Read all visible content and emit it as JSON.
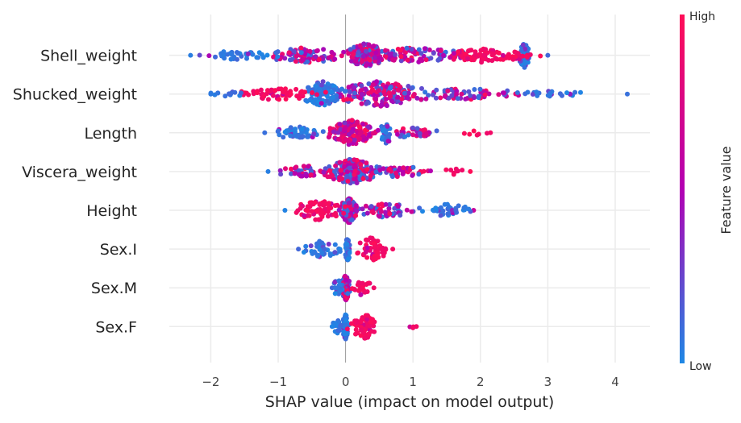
{
  "chart_data": {
    "type": "scatter",
    "subtype": "shap-beeswarm",
    "title": "",
    "xlabel": "SHAP value (impact on model output)",
    "ylabel": "",
    "xlim": [
      -2.6,
      4.5
    ],
    "xticks": [
      -2,
      -1,
      0,
      1,
      2,
      3,
      4
    ],
    "xtick_labels": [
      "−2",
      "−1",
      "0",
      "1",
      "2",
      "3",
      "4"
    ],
    "grid": true,
    "colorbar": {
      "title": "Feature value",
      "high_label": "High",
      "low_label": "Low",
      "high_color": "#ff0d57",
      "mid_color": "#b300b3",
      "low_color": "#1e88e5"
    },
    "features": [
      {
        "name": "Shell_weight",
        "min": -2.3,
        "max": 3.0,
        "clusters": [
          {
            "x": 0.3,
            "w": 0.28,
            "n": 150,
            "c": "mix"
          },
          {
            "x": 1.0,
            "w": 0.8,
            "n": 90,
            "c": "mix"
          },
          {
            "x": 2.0,
            "w": 0.5,
            "n": 60,
            "c": "high"
          },
          {
            "x": 2.65,
            "w": 0.07,
            "n": 40,
            "c": "low"
          },
          {
            "x": 2.5,
            "w": 0.35,
            "n": 25,
            "c": "high"
          },
          {
            "x": -0.6,
            "w": 0.6,
            "n": 80,
            "c": "mix"
          },
          {
            "x": -1.6,
            "w": 0.6,
            "n": 40,
            "c": "low"
          }
        ]
      },
      {
        "name": "Shucked_weight",
        "min": -2.0,
        "max": 4.18,
        "clusters": [
          {
            "x": 0.5,
            "w": 0.7,
            "n": 170,
            "c": "mix"
          },
          {
            "x": -0.35,
            "w": 0.3,
            "n": 90,
            "c": "low"
          },
          {
            "x": -1.0,
            "w": 0.6,
            "n": 60,
            "c": "high"
          },
          {
            "x": 1.8,
            "w": 1.0,
            "n": 70,
            "c": "mix"
          },
          {
            "x": 3.0,
            "w": 0.6,
            "n": 20,
            "c": "low"
          },
          {
            "x": -1.7,
            "w": 0.3,
            "n": 12,
            "c": "low"
          }
        ]
      },
      {
        "name": "Length",
        "min": -1.2,
        "max": 2.15,
        "clusters": [
          {
            "x": 0.1,
            "w": 0.35,
            "n": 150,
            "c": "mixhigh"
          },
          {
            "x": 0.6,
            "w": 0.1,
            "n": 35,
            "c": "low"
          },
          {
            "x": -0.7,
            "w": 0.4,
            "n": 45,
            "c": "low"
          },
          {
            "x": 1.0,
            "w": 0.4,
            "n": 35,
            "c": "mix"
          },
          {
            "x": 1.9,
            "w": 0.2,
            "n": 6,
            "c": "high"
          }
        ]
      },
      {
        "name": "Viscera_weight",
        "min": -1.15,
        "max": 1.85,
        "clusters": [
          {
            "x": 0.1,
            "w": 0.4,
            "n": 160,
            "c": "mix"
          },
          {
            "x": -0.6,
            "w": 0.4,
            "n": 45,
            "c": "mix"
          },
          {
            "x": 0.8,
            "w": 0.5,
            "n": 45,
            "c": "mix"
          },
          {
            "x": 1.6,
            "w": 0.2,
            "n": 8,
            "c": "high"
          }
        ]
      },
      {
        "name": "Height",
        "min": -0.9,
        "max": 1.9,
        "clusters": [
          {
            "x": 0.05,
            "w": 0.12,
            "n": 100,
            "c": "mix"
          },
          {
            "x": -0.4,
            "w": 0.4,
            "n": 70,
            "c": "high"
          },
          {
            "x": 0.6,
            "w": 0.4,
            "n": 50,
            "c": "mix"
          },
          {
            "x": 1.5,
            "w": 0.4,
            "n": 40,
            "c": "low"
          }
        ]
      },
      {
        "name": "Sex.I",
        "min": -0.7,
        "max": 0.7,
        "clusters": [
          {
            "x": 0.03,
            "w": 0.03,
            "n": 60,
            "c": "low"
          },
          {
            "x": -0.35,
            "w": 0.3,
            "n": 40,
            "c": "low"
          },
          {
            "x": 0.4,
            "w": 0.22,
            "n": 60,
            "c": "high"
          }
        ]
      },
      {
        "name": "Sex.M",
        "min": -0.2,
        "max": 0.42,
        "clusters": [
          {
            "x": 0.0,
            "w": 0.06,
            "n": 60,
            "c": "mix"
          },
          {
            "x": -0.12,
            "w": 0.08,
            "n": 20,
            "c": "low"
          },
          {
            "x": 0.25,
            "w": 0.15,
            "n": 25,
            "c": "high"
          }
        ]
      },
      {
        "name": "Sex.F",
        "min": -0.2,
        "max": 1.05,
        "clusters": [
          {
            "x": 0.0,
            "w": 0.04,
            "n": 60,
            "c": "low"
          },
          {
            "x": -0.12,
            "w": 0.08,
            "n": 15,
            "c": "low"
          },
          {
            "x": 0.3,
            "w": 0.22,
            "n": 60,
            "c": "high"
          },
          {
            "x": 0.95,
            "w": 0.06,
            "n": 3,
            "c": "high"
          }
        ]
      }
    ]
  }
}
